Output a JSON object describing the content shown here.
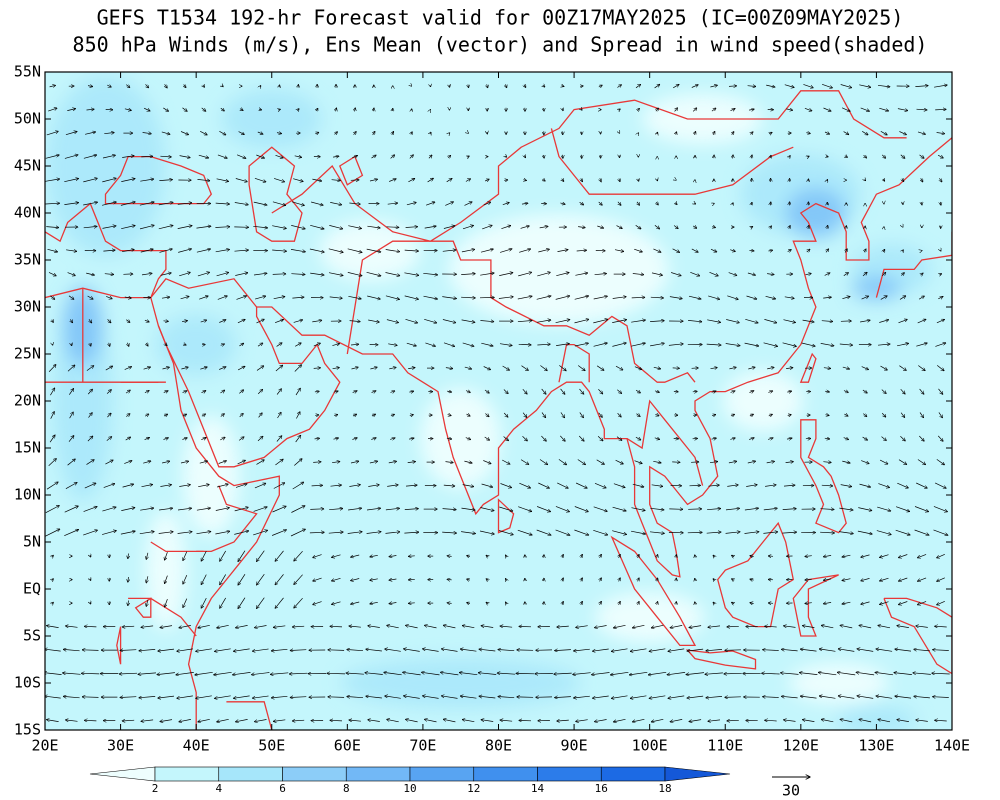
{
  "title": [
    "GEFS T1534 192-hr Forecast valid for 00Z17MAY2025 (IC=00Z09MAY2025)",
    "850 hPa Winds (m/s), Ens Mean (vector) and Spread in wind speed(shaded)"
  ],
  "map": {
    "lonlim": [
      20,
      140
    ],
    "latlim": [
      -15,
      55
    ],
    "lon_ticks": [
      {
        "value": 20,
        "label": "20E"
      },
      {
        "value": 30,
        "label": "30E"
      },
      {
        "value": 40,
        "label": "40E"
      },
      {
        "value": 50,
        "label": "50E"
      },
      {
        "value": 60,
        "label": "60E"
      },
      {
        "value": 70,
        "label": "70E"
      },
      {
        "value": 80,
        "label": "80E"
      },
      {
        "value": 90,
        "label": "90E"
      },
      {
        "value": 100,
        "label": "100E"
      },
      {
        "value": 110,
        "label": "110E"
      },
      {
        "value": 120,
        "label": "120E"
      },
      {
        "value": 130,
        "label": "130E"
      },
      {
        "value": 140,
        "label": "140E"
      }
    ],
    "lat_ticks": [
      {
        "value": 55,
        "label": "55N"
      },
      {
        "value": 50,
        "label": "50N"
      },
      {
        "value": 45,
        "label": "45N"
      },
      {
        "value": 40,
        "label": "40N"
      },
      {
        "value": 35,
        "label": "35N"
      },
      {
        "value": 30,
        "label": "30N"
      },
      {
        "value": 25,
        "label": "25N"
      },
      {
        "value": 20,
        "label": "20N"
      },
      {
        "value": 15,
        "label": "15N"
      },
      {
        "value": 10,
        "label": "10N"
      },
      {
        "value": 5,
        "label": "5N"
      },
      {
        "value": 0,
        "label": "EQ"
      },
      {
        "value": -5,
        "label": "5S"
      },
      {
        "value": -10,
        "label": "10S"
      },
      {
        "value": -15,
        "label": "15S"
      }
    ]
  },
  "colorbar": {
    "ticks": [
      2,
      4,
      6,
      8,
      10,
      12,
      14,
      16,
      18
    ],
    "colors": [
      "#eefefe",
      "#c4f6fc",
      "#a6e6fa",
      "#8ccdf8",
      "#72b8f6",
      "#58a4f2",
      "#4090ee",
      "#2c7cea",
      "#1c6ae4",
      "#1458d8"
    ]
  },
  "reference_vector": "30"
}
